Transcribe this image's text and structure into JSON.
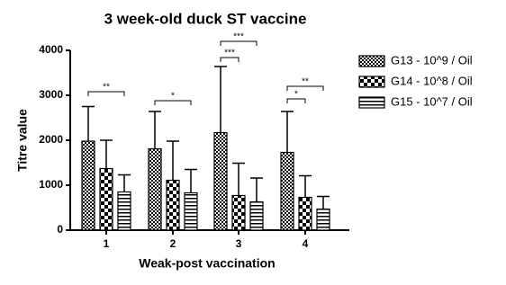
{
  "chart_data": {
    "type": "bar",
    "title": "3 week-old duck ST vaccine",
    "xlabel": "Weak-post vaccination",
    "ylabel": "Titre value",
    "categories": [
      "1",
      "2",
      "3",
      "4"
    ],
    "series": [
      {
        "name": "G13 - 10^9 / Oil",
        "color": "#000000",
        "values": [
          1980,
          1810,
          2170,
          1730
        ],
        "errors": [
          770,
          830,
          1470,
          910
        ]
      },
      {
        "name": "G14 - 10^8 / Oil",
        "color": "#000000",
        "values": [
          1370,
          1110,
          770,
          730
        ],
        "errors": [
          630,
          870,
          720,
          480
        ]
      },
      {
        "name": "G15 - 10^7 / Oil",
        "color": "#000000",
        "values": [
          850,
          830,
          630,
          470
        ],
        "errors": [
          380,
          520,
          530,
          280
        ]
      }
    ],
    "ylim": [
      0,
      4000
    ],
    "yticks": [
      0,
      1000,
      2000,
      3000,
      4000
    ],
    "grid": false,
    "legend": "right",
    "annotations": [
      "**",
      "*",
      "***",
      "***",
      "*",
      "**"
    ]
  }
}
